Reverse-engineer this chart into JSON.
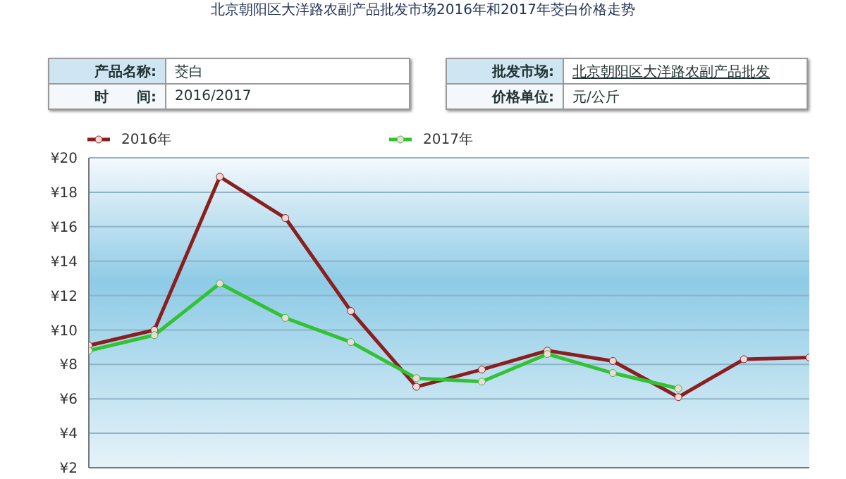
{
  "chart_data": {
    "type": "line",
    "title": "北京朝阳区大洋路农副产品批发市场2016年和2017年茭白价格走势",
    "annotations": [
      "产品名称:",
      "茭白",
      "时　　间:",
      "2016/2017",
      "批发市场:",
      "北京朝阳区大洋路农副产品批发",
      "价格单位:",
      "元/公斤"
    ],
    "categories": [
      null,
      null,
      null,
      null,
      null,
      null,
      null,
      null,
      null,
      null,
      null,
      null
    ],
    "series": [
      {
        "name": "2016年",
        "color": "#8b1f1f",
        "values": [
          9.1,
          10.0,
          18.9,
          16.5,
          11.1,
          6.7,
          7.7,
          8.8,
          8.2,
          6.1,
          8.3,
          8.4
        ]
      },
      {
        "name": "2017年",
        "color": "#33c233",
        "values": [
          8.8,
          9.7,
          12.7,
          10.7,
          9.3,
          7.2,
          7.0,
          8.6,
          7.5,
          6.6,
          null,
          null
        ]
      }
    ],
    "ylim": [
      2,
      20
    ],
    "yticks": [
      {
        "value": 2,
        "label": "¥2"
      },
      {
        "value": 4,
        "label": "¥4"
      },
      {
        "value": 6,
        "label": "¥6"
      },
      {
        "value": 8,
        "label": "¥8"
      },
      {
        "value": 10,
        "label": "¥10"
      },
      {
        "value": 12,
        "label": "¥12"
      },
      {
        "value": 14,
        "label": "¥14"
      },
      {
        "value": 16,
        "label": "¥16"
      },
      {
        "value": 18,
        "label": "¥18"
      },
      {
        "value": 20,
        "label": "¥20"
      }
    ],
    "grid": "y",
    "legend": "top",
    "tick_labels": "y",
    "marker": "circle",
    "line_style": "solid"
  }
}
